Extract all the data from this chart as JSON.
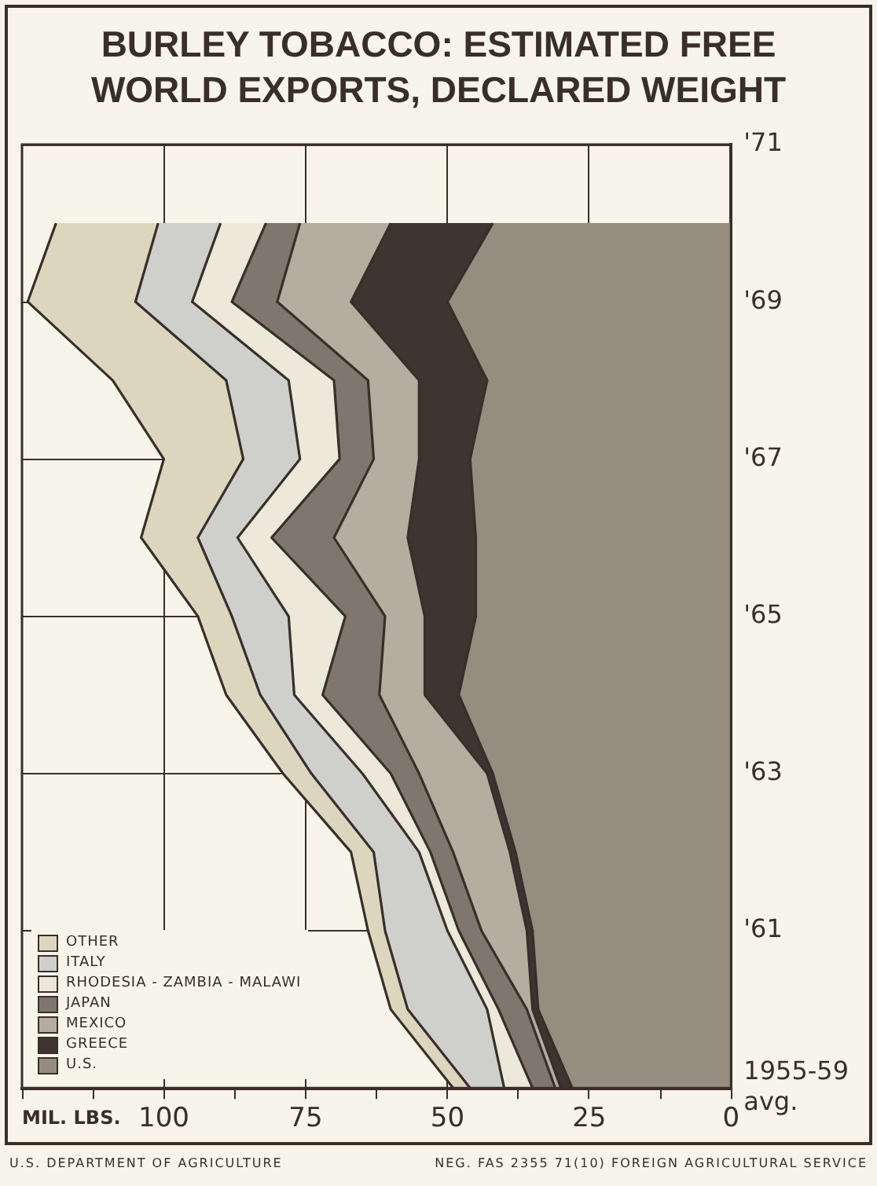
{
  "chart_data": {
    "type": "area",
    "title": "BURLEY TOBACCO: ESTIMATED FREE WORLD EXPORTS, DECLARED WEIGHT",
    "xlabel": "MIL. LBS.",
    "orientation": "horizontal",
    "categories": [
      "'71",
      null,
      "'69",
      null,
      "'67",
      null,
      "'65",
      null,
      "'63",
      null,
      "'61",
      null,
      "1955-59 avg."
    ],
    "stacked": true,
    "xlim": [
      125,
      0
    ],
    "xticks": [
      0,
      {
        "value": 12.5,
        "label": null
      },
      25,
      {
        "value": 37.5,
        "label": null
      },
      50,
      {
        "value": 62.5,
        "label": null
      },
      75,
      {
        "value": 87.5,
        "label": null
      },
      100,
      {
        "value": 112.5,
        "label": null
      },
      {
        "value": 125,
        "label": null
      }
    ],
    "grid": true,
    "legend": "bottom left",
    "marker": "none",
    "line_style": "solid",
    "annotations": [
      "U.S. DEPARTMENT OF AGRICULTURE",
      "NEG. FAS 2355 71(10) FOREIGN AGRICULTURAL SERVICE"
    ],
    "series": [
      {
        "name": "U.S.",
        "color": "#968c80",
        "values": [
          null,
          42,
          50,
          43,
          46,
          45,
          45,
          48,
          42,
          38,
          35,
          34,
          28
        ]
      },
      {
        "name": "GREECE",
        "color": "#3e3430",
        "values": [
          null,
          18,
          17,
          12,
          9,
          12,
          9,
          6,
          1,
          1,
          1,
          1,
          2
        ]
      },
      {
        "name": "MEXICO",
        "color": "#b5ad9f",
        "values": [
          null,
          16,
          13,
          9,
          8,
          13,
          7,
          8,
          12,
          10,
          8,
          1,
          1
        ]
      },
      {
        "name": "JAPAN",
        "color": "#7f776d",
        "values": [
          null,
          6,
          8,
          6,
          6,
          11,
          7,
          10,
          5,
          4,
          4,
          5,
          4
        ]
      },
      {
        "name": "RHODESIA - ZAMBIA - MALAWI",
        "color": "#ece8da",
        "values": [
          null,
          8,
          7,
          8,
          7,
          6,
          10,
          5,
          5,
          2,
          2,
          2,
          5
        ]
      },
      {
        "name": "ITALY",
        "color": "#cfcfcc",
        "values": [
          null,
          11,
          10,
          11,
          10,
          7,
          10,
          6,
          9,
          8,
          11,
          14,
          6
        ]
      },
      {
        "name": "OTHER",
        "color": "#ddd6bf",
        "values": [
          null,
          18,
          19,
          20,
          14,
          10,
          6,
          6,
          5,
          4,
          3,
          3,
          3
        ]
      }
    ]
  }
}
